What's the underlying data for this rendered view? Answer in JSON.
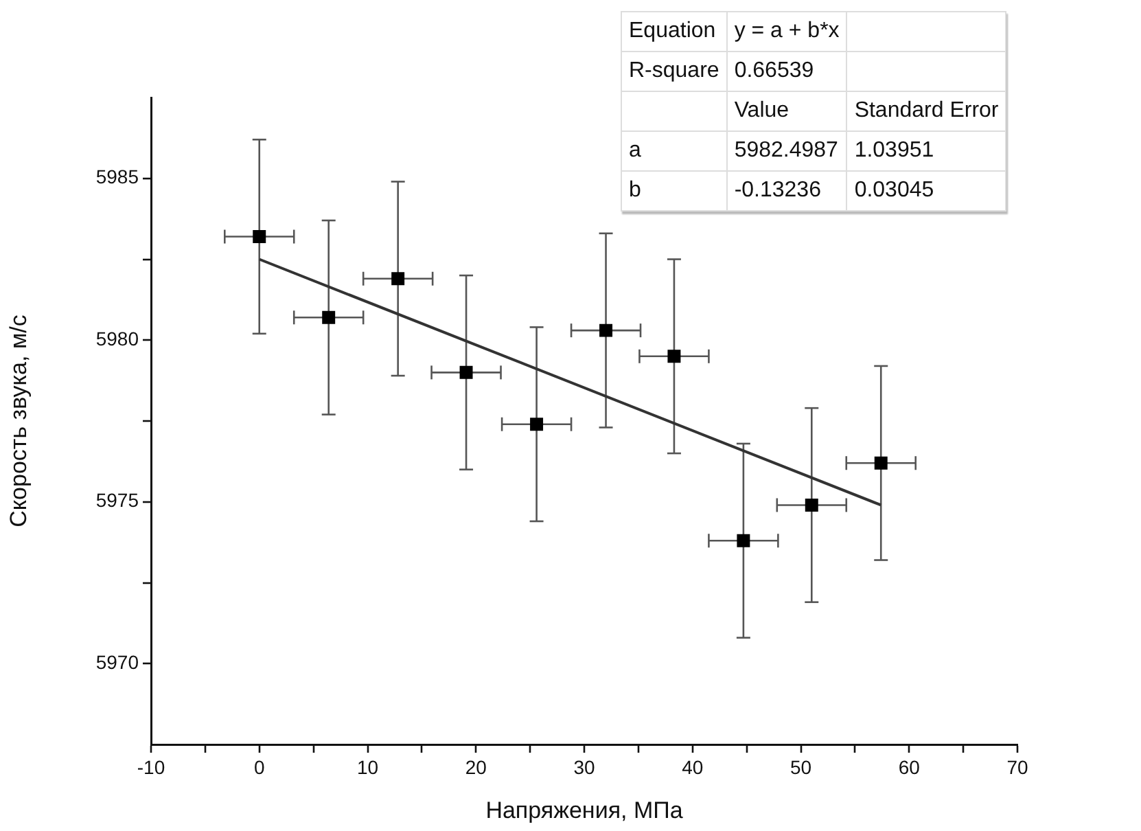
{
  "chart_data": {
    "type": "scatter",
    "xlabel": "Напряжения, МПа",
    "ylabel": "Скорость звука, м/с",
    "xlim": [
      -10,
      70
    ],
    "xticks": [
      -10,
      {
        "value": -5,
        "label": null
      },
      0,
      {
        "value": 5,
        "label": null
      },
      10,
      {
        "value": 15,
        "label": null
      },
      20,
      {
        "value": 25,
        "label": null
      },
      30,
      {
        "value": 35,
        "label": null
      },
      40,
      {
        "value": 45,
        "label": null
      },
      50,
      {
        "value": 55,
        "label": null
      },
      60,
      {
        "value": 65,
        "label": null
      },
      70
    ],
    "ylim": [
      5967.5,
      5987.5
    ],
    "yticks": [
      5970,
      {
        "value": 5972.5,
        "label": null
      },
      5975,
      {
        "value": 5977.5,
        "label": null
      },
      5980,
      {
        "value": 5982.5,
        "label": null
      },
      5985
    ],
    "series": [
      {
        "marker": "square",
        "color": "#000000",
        "x": [
          0,
          6.4,
          12.8,
          19.1,
          25.6,
          32,
          38.3,
          44.7,
          51,
          57.4
        ],
        "values": [
          5983.2,
          5980.7,
          5981.9,
          5979,
          5977.4,
          5980.3,
          5979.5,
          5973.8,
          5974.9,
          5976.2
        ],
        "errors": [
          3,
          3,
          3,
          3,
          3,
          3,
          3,
          3,
          3,
          3
        ],
        "xerrors": [
          3.2,
          3.2,
          3.2,
          3.2,
          3.2,
          3.2,
          3.2,
          3.2,
          3.2,
          3.2
        ]
      },
      {
        "type": "line",
        "color": "#333333",
        "x": [
          0,
          57.4
        ],
        "values": [
          5982.5,
          5974.9
        ]
      }
    ],
    "annotations": [
      "Equation",
      "y = a + b*x",
      "R-square",
      "0.66539",
      "Value",
      "Standard Error",
      "a",
      "5982.4987",
      "1.03951",
      "b",
      "-0.13236",
      "0.03045"
    ]
  }
}
